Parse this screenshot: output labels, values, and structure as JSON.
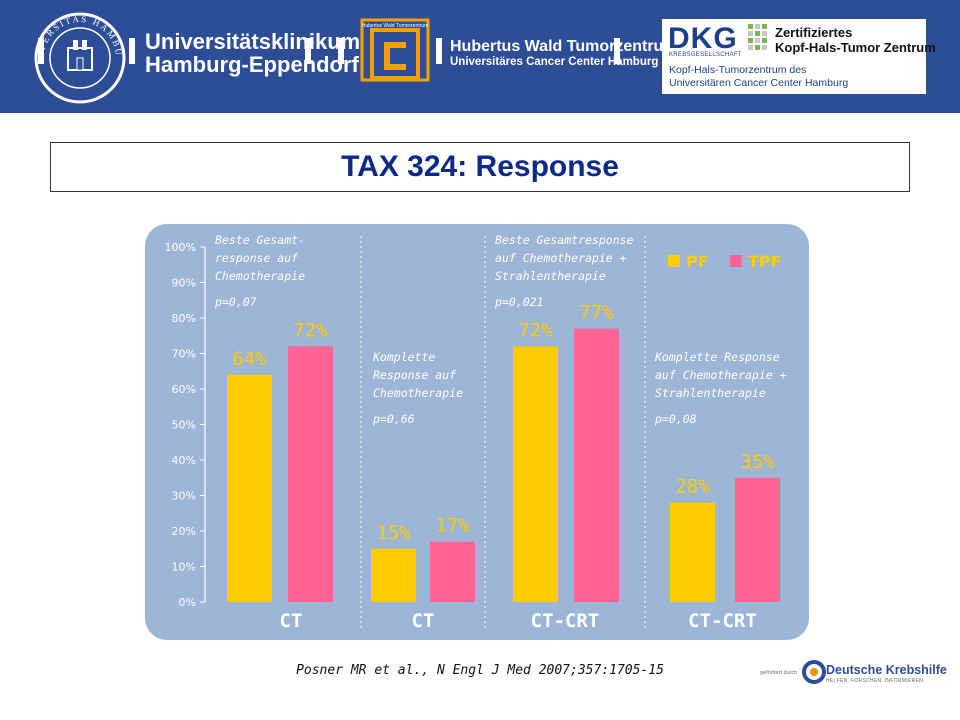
{
  "header": {
    "uke_seal_text": "UNIVERSITAS HAMBURG",
    "uke_line1": "Universitätsklinikum",
    "uke_line2": "Hamburg-Eppendorf",
    "hw_logo_text": "Hubertus Wald Tumorzentrum",
    "hw_line1": "Hubertus Wald Tumorzentrum",
    "hw_line2": "Universitäres Cancer Center Hamburg",
    "dkg_abbrev": "DKG",
    "dkg_small": "KREBSGESELLSCHAFT",
    "dkg_title1": "Zertifiziertes",
    "dkg_title2": "Kopf-Hals-Tumor Zentrum",
    "dkg_sub1": "Kopf-Hals-Tumorzentrum des",
    "dkg_sub2": "Universitären Cancer Center Hamburg"
  },
  "slide": {
    "title": "TAX 324: Response",
    "citation": "Posner MR et al., N Engl J Med 2007;357:1705-15"
  },
  "footer": {
    "gefoerdert": "gefördert durch",
    "org_name": "Deutsche Krebshilfe",
    "org_tagline": "HELFEN. FORSCHEN. INFORMIEREN."
  },
  "colors": {
    "header_bg": "#2e4d97",
    "chart_bg": "#9db5d6",
    "pf": "#ffcc00",
    "tpf": "#ff6495",
    "label_value": "#ffcc00",
    "label_annot": "#ffffff",
    "title": "#0b2a86",
    "dk_orange": "#f29100"
  },
  "chart_data": {
    "type": "bar",
    "title": "TAX 324: Response",
    "ylim": [
      0,
      100
    ],
    "yticks": [
      "0%",
      "10%",
      "20%",
      "30%",
      "40%",
      "50%",
      "60%",
      "70%",
      "80%",
      "90%",
      "100%"
    ],
    "series_names": [
      "PF",
      "TPF"
    ],
    "legend_position": "top-right",
    "grid": false,
    "groups": [
      {
        "category": "CT",
        "annotation": [
          "Beste Gesamt-",
          "response auf",
          "Chemotherapie"
        ],
        "p_value": "p=0,07",
        "values": [
          64,
          72
        ],
        "labels": [
          "64%",
          "72%"
        ]
      },
      {
        "category": "CT",
        "annotation": [
          "Komplette",
          "Response auf",
          "Chemotherapie"
        ],
        "p_value": "p=0,66",
        "values": [
          15,
          17
        ],
        "labels": [
          "15%",
          "17%"
        ]
      },
      {
        "category": "CT-CRT",
        "annotation": [
          "Beste Gesamtresponse",
          "auf Chemotherapie +",
          "Strahlentherapie"
        ],
        "p_value": "p=0,021",
        "values": [
          72,
          77
        ],
        "labels": [
          "72%",
          "77%"
        ]
      },
      {
        "category": "CT-CRT",
        "annotation": [
          "Komplette Response",
          "auf Chemotherapie +",
          "Strahlentherapie"
        ],
        "p_value": "p=0,08",
        "values": [
          28,
          35
        ],
        "labels": [
          "28%",
          "35%"
        ]
      }
    ]
  }
}
